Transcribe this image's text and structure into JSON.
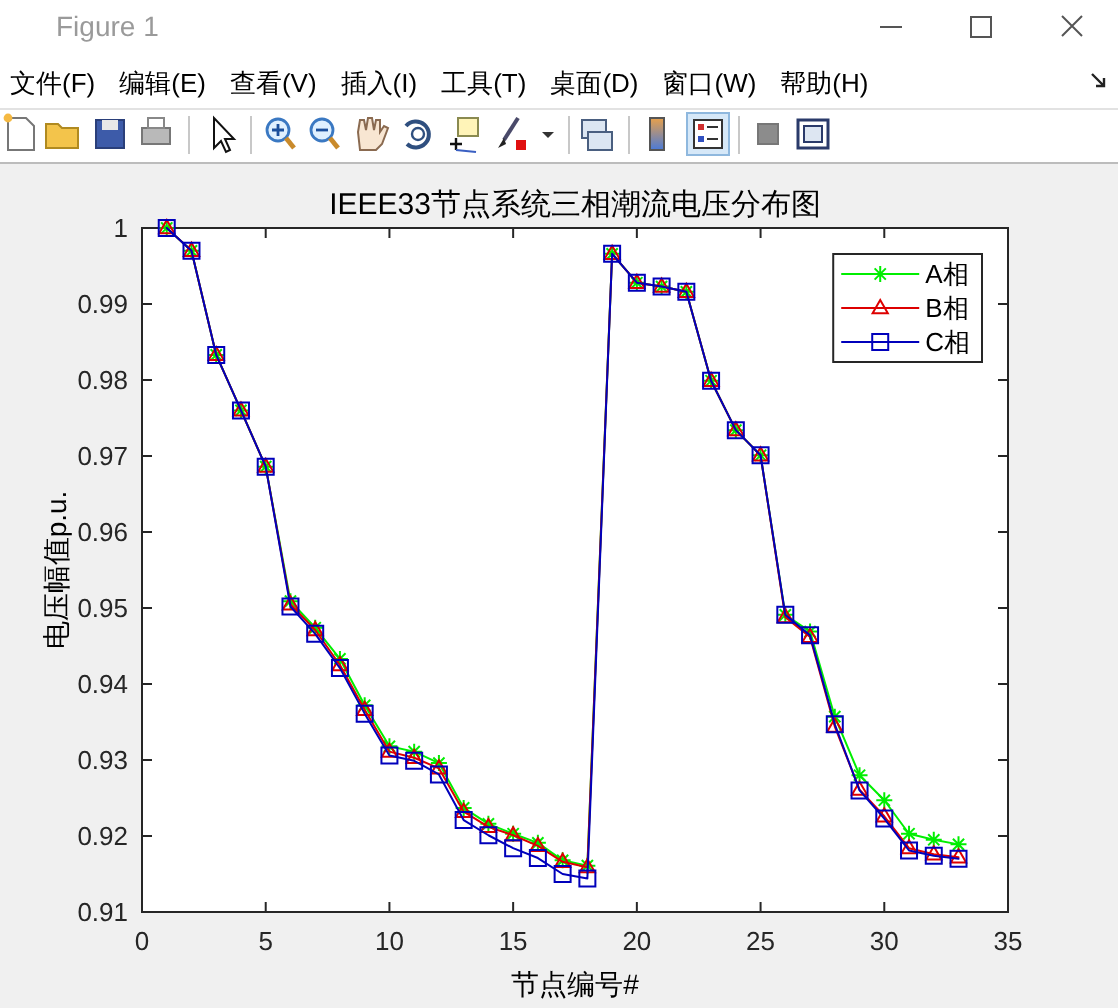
{
  "chart_data": {
    "type": "line",
    "title": "IEEE33节点系统三相潮流电压分布图",
    "xlabel": "节点编号#",
    "ylabel": "电压幅值p.u.",
    "annotations": [
      "Figure 1",
      "文件(F)",
      "编辑(E)",
      "查看(V)",
      "插入(I)",
      "工具(T)",
      "桌面(D)",
      "窗口(W)",
      "帮助(H)"
    ],
    "x": [
      1,
      2,
      3,
      4,
      5,
      6,
      7,
      8,
      9,
      10,
      11,
      12,
      13,
      14,
      15,
      16,
      17,
      18,
      19,
      20,
      21,
      22,
      23,
      24,
      25,
      26,
      27,
      28,
      29,
      30,
      31,
      32,
      33
    ],
    "series": [
      {
        "name": "A相",
        "color": "#00ee00",
        "marker": "cross",
        "values": [
          1.0,
          0.997,
          0.9833,
          0.976,
          0.9686,
          0.9509,
          0.9474,
          0.9433,
          0.9372,
          0.9318,
          0.9311,
          0.9296,
          0.9237,
          0.9216,
          0.9203,
          0.9191,
          0.9168,
          0.9161,
          0.9966,
          0.9928,
          0.9923,
          0.9916,
          0.9799,
          0.9734,
          0.9701,
          0.9491,
          0.9469,
          0.9357,
          0.928,
          0.9247,
          0.9203,
          0.9195,
          0.9189
        ]
      },
      {
        "name": "B相",
        "color": "#dd0000",
        "marker": "triangle",
        "values": [
          1.0,
          0.997,
          0.9833,
          0.976,
          0.9686,
          0.9505,
          0.9471,
          0.9425,
          0.9366,
          0.9311,
          0.9303,
          0.9289,
          0.9232,
          0.9212,
          0.9201,
          0.9187,
          0.9166,
          0.9159,
          0.9966,
          0.9928,
          0.9923,
          0.9916,
          0.9799,
          0.9734,
          0.9701,
          0.9488,
          0.9462,
          0.9344,
          0.9261,
          0.9226,
          0.9184,
          0.9176,
          0.9172
        ]
      },
      {
        "name": "C相",
        "color": "#0000bb",
        "marker": "square",
        "values": [
          1.0,
          0.997,
          0.9833,
          0.976,
          0.9686,
          0.9502,
          0.9466,
          0.9421,
          0.9361,
          0.9306,
          0.9299,
          0.9281,
          0.9221,
          0.9201,
          0.9184,
          0.9171,
          0.915,
          0.9144,
          0.9966,
          0.9928,
          0.9923,
          0.9916,
          0.9799,
          0.9734,
          0.9701,
          0.9491,
          0.9464,
          0.9347,
          0.926,
          0.9223,
          0.9181,
          0.9174,
          0.917
        ]
      }
    ],
    "xlim": [
      0,
      35
    ],
    "xticks": [
      0,
      5,
      10,
      15,
      20,
      25,
      30,
      35
    ],
    "ylim": [
      0.91,
      1
    ],
    "yticks": [
      0.91,
      0.92,
      0.93,
      0.94,
      0.95,
      0.96,
      0.97,
      0.98,
      0.99,
      1
    ],
    "legend": "top right",
    "line_style": "solid"
  }
}
